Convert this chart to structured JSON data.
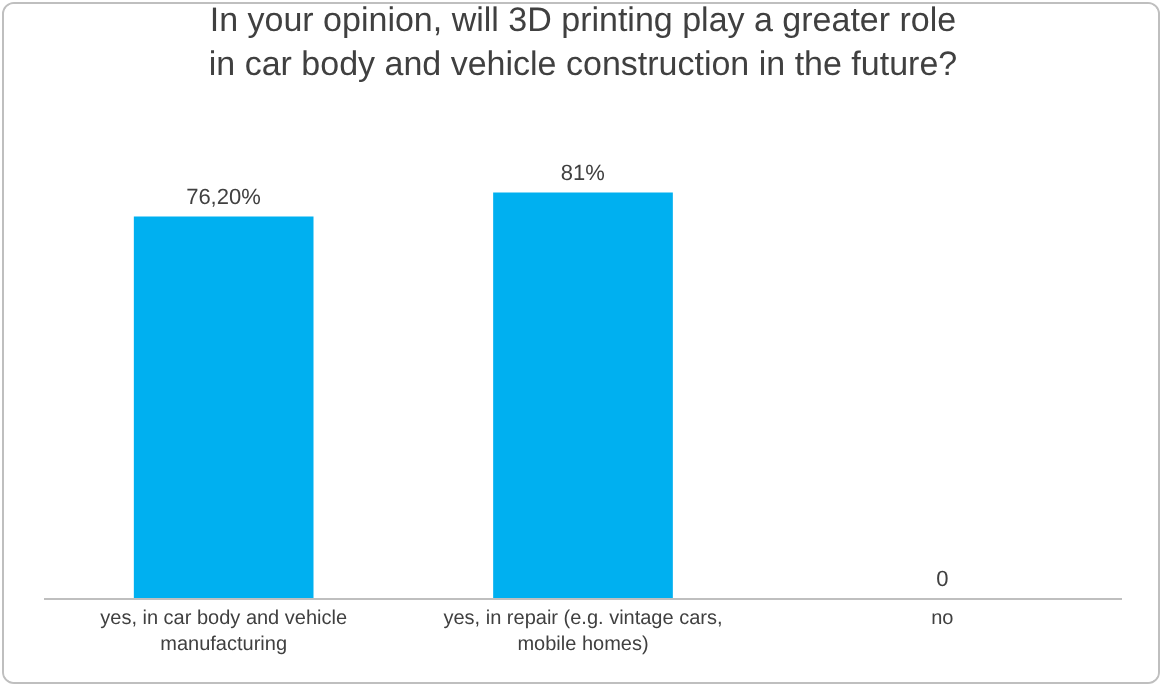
{
  "chart_data": {
    "type": "bar",
    "title": "In your opinion, will 3D printing play a greater role in car body and vehicle construction in the future?",
    "categories": [
      "yes, in car body and vehicle manufacturing",
      "yes, in repair (e.g. vintage cars, mobile homes)",
      "no"
    ],
    "values": [
      76.2,
      81,
      0
    ],
    "value_labels": [
      "76,20%",
      "81%",
      "0"
    ],
    "color": "#00b0f0",
    "grid": false,
    "legend": false
  }
}
